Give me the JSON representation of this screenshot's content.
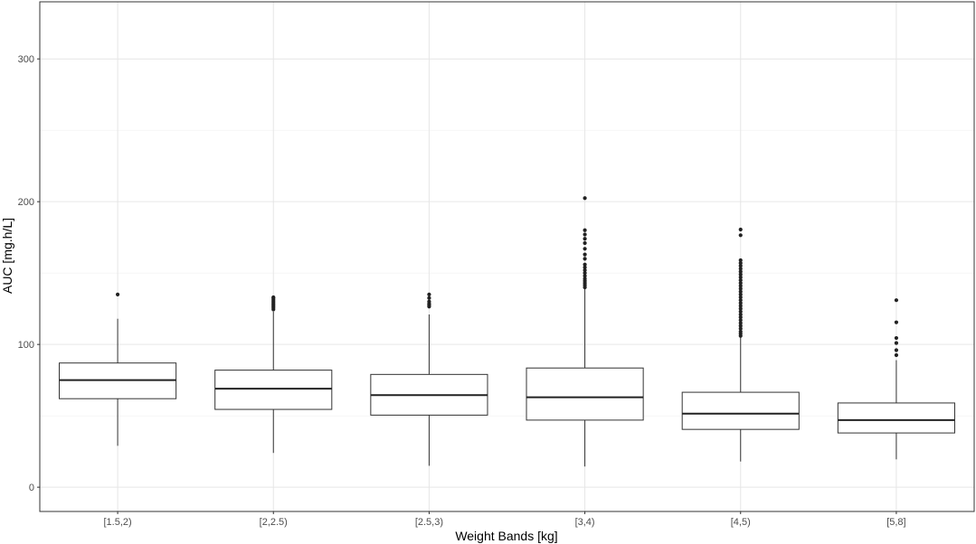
{
  "chart_data": {
    "type": "boxplot",
    "xlabel": "Weight Bands [kg]",
    "ylabel": "AUC [mg.h/L]",
    "ylim": [
      -17,
      340
    ],
    "yticks": [
      0,
      100,
      200,
      300
    ],
    "grid": true,
    "categories": [
      "[1.5,2)",
      "[2,2.5)",
      "[2.5,3)",
      "[3,4)",
      "[4,5)",
      "[5,8]"
    ],
    "boxes": [
      {
        "category": "[1.5,2)",
        "whisker_low": 29,
        "q1": 62,
        "median": 75,
        "q3": 87,
        "whisker_high": 118,
        "outliers": [
          135
        ]
      },
      {
        "category": "[2,2.5)",
        "whisker_low": 24,
        "q1": 54.5,
        "median": 69,
        "q3": 82,
        "whisker_high": 123,
        "outliers": [
          124.5,
          125.5,
          126.5,
          127.5,
          128.5,
          129.5,
          130.5,
          131.5,
          132.5,
          133
        ]
      },
      {
        "category": "[2.5,3)",
        "whisker_low": 15,
        "q1": 50.5,
        "median": 64.5,
        "q3": 79,
        "whisker_high": 121,
        "outliers": [
          126.5,
          127.5,
          128.5,
          130,
          132.5,
          135
        ]
      },
      {
        "category": "[3,4)",
        "whisker_low": 14.5,
        "q1": 47,
        "median": 63,
        "q3": 83.5,
        "whisker_high": 139,
        "outliers": [
          140,
          141.5,
          143,
          144.5,
          146,
          148,
          150,
          152,
          154,
          156,
          160,
          163,
          167,
          171,
          174,
          177,
          180,
          202.5
        ]
      },
      {
        "category": "[4,5)",
        "whisker_low": 18,
        "q1": 40.5,
        "median": 51.5,
        "q3": 66.5,
        "whisker_high": 105,
        "outliers": [
          106,
          107.5,
          109,
          111,
          113,
          115,
          117,
          119,
          121,
          123,
          125,
          127,
          129,
          131,
          133,
          135,
          137,
          139,
          141,
          143,
          145,
          147,
          149,
          151,
          153,
          155,
          157,
          159,
          176.5,
          180.5
        ]
      },
      {
        "category": "[5,8]",
        "whisker_low": 19.5,
        "q1": 38,
        "median": 47,
        "q3": 59,
        "whisker_high": 89,
        "outliers": [
          92.5,
          96,
          101,
          104.5,
          115.5,
          131
        ]
      }
    ]
  }
}
